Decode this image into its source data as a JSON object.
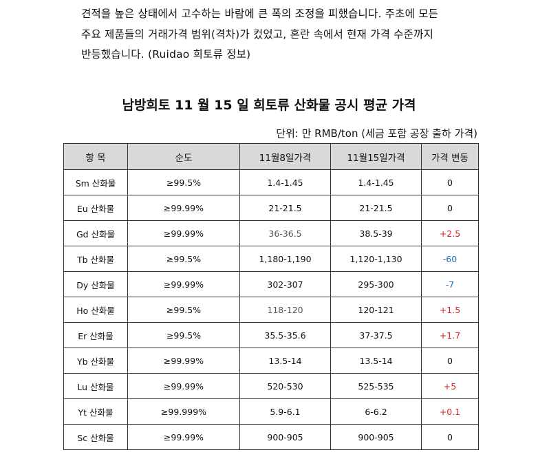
{
  "paragraph": {
    "lines": [
      "견적을 높은 상태에서 고수하는 바람에 큰 폭의 조정을 피했습니다. 주초에 모든",
      "주요 제품들의 거래가격 범위(격차)가 컸었고, 혼란 속에서 현재 가격 수준까지",
      "반등했습니다. (Ruidao 희토류 정보)"
    ]
  },
  "title": "남방희토 11 월 15 일 희토류 산화물 공시 평균 가격",
  "unit": "단위: 만 RMB/ton (세금 포함 공장 출하 가격)",
  "table": {
    "headers": [
      "항 목",
      "순도",
      "11월8일가격",
      "11월15일가격",
      "가격 변동"
    ],
    "rows": [
      {
        "item": "Sm 산화물",
        "purity": "≥99.5%",
        "nov8": "1.4-1.45",
        "nov15": "1.4-1.45",
        "change": "0"
      },
      {
        "item": "Eu 산화물",
        "purity": "≥99.99%",
        "nov8": "21-21.5",
        "nov15": "21-21.5",
        "change": "0"
      },
      {
        "item": "Gd 산화물",
        "purity": "≥99.99%",
        "nov8": "36-36.5",
        "nov15": "38.5-39",
        "change": "+2.5"
      },
      {
        "item": "Tb 산화물",
        "purity": "≥99.5%",
        "nov8": "1,180-1,190",
        "nov15": "1,120-1,130",
        "change": "-60"
      },
      {
        "item": "Dy 산화물",
        "purity": "≥99.99%",
        "nov8": "302-307",
        "nov15": "295-300",
        "change": "-7"
      },
      {
        "item": "Ho 산화물",
        "purity": "≥99.5%",
        "nov8": "118-120",
        "nov15": "120-121",
        "change": "+1.5"
      },
      {
        "item": "Er 산화물",
        "purity": "≥99.5%",
        "nov8": "35.5-35.6",
        "nov15": "37-37.5",
        "change": "+1.7"
      },
      {
        "item": "Yb 산화물",
        "purity": "≥99.99%",
        "nov8": "13.5-14",
        "nov15": "13.5-14",
        "change": "0"
      },
      {
        "item": "Lu 산화물",
        "purity": "≥99.99%",
        "nov8": "520-530",
        "nov15": "525-535",
        "change": "+5"
      },
      {
        "item": "Yt 산화물",
        "purity": "≥99.999%",
        "nov8": "5.9-6.1",
        "nov15": "6-6.2",
        "change": "+0.1"
      },
      {
        "item": "Sc 산화물",
        "purity": "≥99.99%",
        "nov8": "900-905",
        "nov15": "900-905",
        "change": "0"
      }
    ]
  },
  "colors": {
    "increase": "#e02020",
    "decrease": "#1f6fb8",
    "header_bg": "#d9d9d9"
  }
}
